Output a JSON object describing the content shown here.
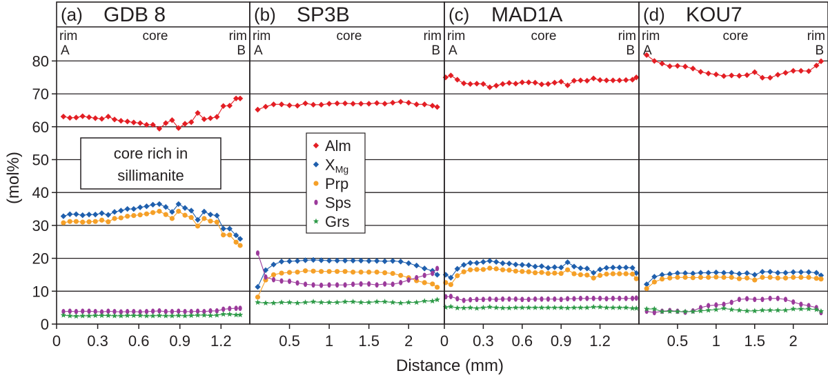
{
  "figure": {
    "ylabel": "(mol%)",
    "xlabel": "Distance (mm)",
    "ylim": [
      0,
      87
    ],
    "y_ticks": [
      0,
      10,
      20,
      30,
      40,
      50,
      60,
      70,
      80
    ],
    "y_tick_labels": [
      "0",
      "10",
      "20",
      "30",
      "40",
      "50",
      "60",
      "70",
      "80"
    ],
    "gridlines": [
      10,
      20,
      30,
      40,
      50,
      60,
      70,
      80
    ],
    "colors": {
      "Alm": "#e31e24",
      "XMg": "#1f5fad",
      "Prp": "#f5a028",
      "Sps": "#9b3a9b",
      "Grs": "#2e9a48",
      "axis": "#231f20"
    }
  },
  "legend": {
    "items": [
      {
        "key": "Alm",
        "label": "Alm",
        "marker": "diamond"
      },
      {
        "key": "XMg",
        "label": "X",
        "sub": "Mg",
        "marker": "diamond"
      },
      {
        "key": "Prp",
        "label": "Prp",
        "marker": "circle"
      },
      {
        "key": "Sps",
        "label": "Sps",
        "marker": "ellipse"
      },
      {
        "key": "Grs",
        "label": "Grs",
        "marker": "star"
      }
    ]
  },
  "annotation": {
    "line1": "core rich in",
    "line2": "sillimanite"
  },
  "chart_data": [
    {
      "type": "line",
      "title": "GDB 8",
      "tag": "(a)",
      "rim_left": "rim",
      "core": "core",
      "rim_right": "rim",
      "end_a": "A",
      "end_b": "B",
      "xlim": [
        0,
        1.41
      ],
      "x_ticks": [
        0,
        0.3,
        0.6,
        0.9,
        1.2
      ],
      "x_tick_labels": [
        "0",
        "0.3",
        "0.6",
        "0.9",
        "1.2"
      ],
      "x": [
        0.05,
        0.097,
        0.143,
        0.19,
        0.237,
        0.283,
        0.33,
        0.377,
        0.423,
        0.47,
        0.517,
        0.563,
        0.61,
        0.657,
        0.703,
        0.75,
        0.797,
        0.843,
        0.89,
        0.937,
        0.983,
        1.03,
        1.077,
        1.123,
        1.17,
        1.217,
        1.263,
        1.31,
        1.34
      ],
      "series": [
        {
          "name": "Alm",
          "values": [
            63.1,
            62.7,
            62.8,
            63.2,
            62.9,
            62.6,
            62.4,
            63.1,
            62.2,
            61.8,
            61.6,
            61.3,
            61.1,
            60.6,
            60.6,
            59.4,
            61.1,
            62.0,
            59.6,
            60.9,
            61.4,
            64.2,
            62.3,
            62.6,
            63.0,
            66.3,
            66.4,
            68.6,
            68.6
          ]
        },
        {
          "name": "XMg",
          "values": [
            32.8,
            33.4,
            33.4,
            33.1,
            33.3,
            33.3,
            33.7,
            33.2,
            34.1,
            34.5,
            35.0,
            35.0,
            35.5,
            35.8,
            36.3,
            36.5,
            35.6,
            34.1,
            36.5,
            35.3,
            34.5,
            31.7,
            34.2,
            33.3,
            33.0,
            29.0,
            29.0,
            27.0,
            25.9
          ]
        },
        {
          "name": "Prp",
          "values": [
            30.8,
            31.2,
            31.2,
            31.0,
            31.1,
            31.2,
            31.6,
            31.1,
            32.1,
            32.3,
            32.8,
            33.0,
            33.2,
            33.5,
            33.9,
            34.3,
            33.3,
            32.1,
            34.3,
            33.1,
            32.4,
            29.8,
            32.1,
            31.3,
            31.0,
            27.1,
            27.1,
            24.9,
            23.9
          ]
        },
        {
          "name": "Sps",
          "values": [
            3.8,
            3.9,
            3.8,
            3.9,
            3.9,
            3.8,
            3.7,
            3.9,
            3.8,
            3.7,
            3.8,
            3.8,
            3.7,
            3.8,
            3.9,
            4.0,
            3.8,
            3.8,
            3.9,
            3.8,
            3.8,
            3.9,
            3.8,
            4.0,
            4.0,
            4.5,
            4.7,
            4.8,
            4.8
          ]
        },
        {
          "name": "Grs",
          "values": [
            2.7,
            2.5,
            2.4,
            2.5,
            2.5,
            2.6,
            2.6,
            2.6,
            2.5,
            2.5,
            2.6,
            2.6,
            2.6,
            2.5,
            2.5,
            2.6,
            2.5,
            2.5,
            2.6,
            2.5,
            2.6,
            2.7,
            2.7,
            2.6,
            2.7,
            3.0,
            3.0,
            2.8,
            2.8
          ]
        }
      ]
    },
    {
      "type": "line",
      "title": "SP3B",
      "tag": "(b)",
      "rim_left": "rim",
      "core": "core",
      "rim_right": "rim",
      "end_a": "A",
      "end_b": "B",
      "xlim": [
        0,
        2.45
      ],
      "x_ticks": [
        0.5,
        1,
        1.5,
        2
      ],
      "x_tick_labels": [
        "0.5",
        "1",
        "1.5",
        "2"
      ],
      "x": [
        0.1,
        0.2,
        0.3,
        0.4,
        0.5,
        0.6,
        0.7,
        0.8,
        0.9,
        1.0,
        1.1,
        1.2,
        1.3,
        1.4,
        1.5,
        1.6,
        1.7,
        1.8,
        1.9,
        2.0,
        2.1,
        2.2,
        2.3,
        2.36
      ],
      "series": [
        {
          "name": "Alm",
          "values": [
            65.2,
            66.1,
            66.8,
            66.8,
            66.5,
            66.4,
            67.1,
            66.7,
            66.7,
            67.0,
            67.1,
            67.1,
            67.0,
            67.0,
            67.0,
            67.2,
            67.0,
            67.3,
            67.6,
            67.3,
            66.8,
            66.8,
            66.4,
            66.0
          ]
        },
        {
          "name": "XMg",
          "values": [
            11.3,
            16.4,
            18.1,
            19.0,
            19.1,
            19.2,
            19.4,
            19.5,
            19.4,
            19.3,
            19.3,
            19.3,
            19.3,
            19.3,
            19.2,
            19.2,
            19.1,
            19.2,
            19.0,
            18.5,
            17.8,
            16.9,
            16.2,
            15.0
          ]
        },
        {
          "name": "Prp",
          "values": [
            8.2,
            13.4,
            15.0,
            15.5,
            15.7,
            15.8,
            16.2,
            16.1,
            16.0,
            16.0,
            16.0,
            16.0,
            15.8,
            15.8,
            15.8,
            15.8,
            15.6,
            15.4,
            14.8,
            14.1,
            13.2,
            12.6,
            12.2,
            11.2
          ]
        },
        {
          "name": "Sps",
          "values": [
            21.6,
            14.3,
            13.5,
            13.1,
            13.0,
            12.5,
            12.1,
            11.9,
            11.8,
            11.9,
            11.9,
            11.9,
            12.1,
            12.2,
            12.2,
            11.9,
            12.2,
            12.1,
            12.6,
            13.4,
            14.1,
            14.8,
            15.4,
            16.9
          ]
        },
        {
          "name": "Grs",
          "values": [
            6.6,
            6.4,
            6.4,
            6.6,
            6.6,
            6.4,
            6.6,
            6.8,
            6.6,
            6.6,
            6.6,
            6.8,
            6.8,
            6.6,
            6.6,
            6.8,
            6.8,
            6.6,
            6.4,
            6.6,
            6.6,
            7.0,
            7.0,
            7.4
          ]
        }
      ]
    },
    {
      "type": "line",
      "title": "MAD1A",
      "tag": "(c)",
      "rim_left": "rim",
      "core": "core",
      "rim_right": "rim",
      "end_a": "A",
      "end_b": "B",
      "xlim": [
        0,
        1.5
      ],
      "x_ticks": [
        0,
        0.3,
        0.6,
        0.9,
        1.2
      ],
      "x_tick_labels": [
        "0",
        "0.3",
        "0.6",
        "0.9",
        "1.2"
      ],
      "x": [
        0.01,
        0.05,
        0.1,
        0.15,
        0.2,
        0.25,
        0.3,
        0.35,
        0.4,
        0.45,
        0.5,
        0.55,
        0.6,
        0.65,
        0.7,
        0.75,
        0.8,
        0.85,
        0.9,
        0.95,
        1.0,
        1.05,
        1.1,
        1.15,
        1.2,
        1.25,
        1.3,
        1.35,
        1.4,
        1.45,
        1.48
      ],
      "series": [
        {
          "name": "Alm",
          "values": [
            75.0,
            75.6,
            74.3,
            73.2,
            73.0,
            73.1,
            73.0,
            72.0,
            72.5,
            73.0,
            73.3,
            73.1,
            73.5,
            73.5,
            73.4,
            72.9,
            73.0,
            73.4,
            73.7,
            72.6,
            74.0,
            74.1,
            74.0,
            74.7,
            74.2,
            74.1,
            74.1,
            74.1,
            74.2,
            74.3,
            75.0
          ]
        },
        {
          "name": "XMg",
          "values": [
            15.0,
            14.1,
            16.8,
            18.0,
            18.6,
            18.6,
            18.9,
            19.2,
            18.9,
            18.5,
            18.4,
            18.1,
            18.0,
            17.9,
            17.5,
            17.6,
            17.1,
            17.3,
            17.2,
            18.8,
            17.5,
            17.0,
            16.9,
            15.6,
            16.6,
            17.1,
            17.2,
            17.2,
            17.2,
            17.1,
            15.5
          ]
        },
        {
          "name": "Prp",
          "values": [
            12.6,
            12.0,
            14.7,
            15.9,
            16.5,
            16.6,
            16.6,
            17.0,
            16.8,
            16.5,
            16.4,
            16.1,
            16.0,
            15.9,
            15.6,
            15.7,
            15.4,
            15.5,
            15.4,
            16.5,
            15.3,
            15.0,
            14.9,
            14.0,
            14.8,
            15.2,
            15.3,
            15.3,
            15.3,
            15.2,
            13.8
          ]
        },
        {
          "name": "Sps",
          "values": [
            8.3,
            8.4,
            7.7,
            7.2,
            7.4,
            7.5,
            7.5,
            7.6,
            7.5,
            7.6,
            7.6,
            7.6,
            7.5,
            7.5,
            7.6,
            7.6,
            7.6,
            7.6,
            7.5,
            7.7,
            7.7,
            7.8,
            7.8,
            7.8,
            7.8,
            7.7,
            7.8,
            7.8,
            7.8,
            7.8,
            7.9
          ]
        },
        {
          "name": "Grs",
          "values": [
            5.1,
            5.3,
            4.9,
            4.9,
            5.0,
            4.8,
            5.0,
            5.2,
            5.0,
            4.9,
            4.9,
            5.0,
            5.0,
            5.0,
            5.0,
            5.0,
            5.0,
            5.0,
            5.0,
            4.9,
            5.0,
            5.0,
            5.0,
            5.2,
            5.2,
            5.0,
            5.0,
            5.0,
            5.0,
            4.8,
            4.8
          ]
        }
      ]
    },
    {
      "type": "line",
      "title": "KOU7",
      "tag": "(d)",
      "rim_left": "rim",
      "core": "core",
      "rim_right": "rim",
      "end_a": "A",
      "end_b": "B",
      "xlim": [
        0,
        2.45
      ],
      "x_ticks": [
        0.5,
        1,
        1.5,
        2
      ],
      "x_tick_labels": [
        "0.5",
        "1",
        "1.5",
        "2"
      ],
      "x": [
        0.1,
        0.2,
        0.3,
        0.4,
        0.5,
        0.6,
        0.7,
        0.8,
        0.9,
        1.0,
        1.1,
        1.2,
        1.3,
        1.4,
        1.5,
        1.6,
        1.7,
        1.8,
        1.9,
        2.0,
        2.1,
        2.2,
        2.3,
        2.36
      ],
      "series": [
        {
          "name": "Alm",
          "values": [
            81.8,
            80.0,
            79.2,
            78.4,
            78.5,
            78.3,
            77.7,
            76.7,
            76.2,
            75.9,
            75.4,
            75.6,
            75.5,
            75.7,
            76.6,
            74.9,
            74.9,
            75.8,
            76.4,
            77.0,
            77.0,
            76.9,
            78.6,
            79.9
          ]
        },
        {
          "name": "XMg",
          "values": [
            12.1,
            14.4,
            15.0,
            15.2,
            15.5,
            15.5,
            15.4,
            15.6,
            15.6,
            15.7,
            15.6,
            15.6,
            15.3,
            15.5,
            15.0,
            15.9,
            15.9,
            15.6,
            15.6,
            15.8,
            15.8,
            15.8,
            15.6,
            14.8
          ]
        },
        {
          "name": "Prp",
          "values": [
            10.8,
            12.8,
            13.7,
            14.0,
            14.2,
            14.2,
            14.1,
            14.2,
            14.2,
            14.3,
            14.2,
            14.2,
            13.8,
            14.0,
            13.4,
            14.2,
            14.2,
            14.0,
            14.0,
            14.2,
            14.2,
            14.2,
            13.9,
            13.7
          ]
        },
        {
          "name": "Sps",
          "values": [
            3.9,
            3.5,
            3.9,
            4.1,
            3.9,
            3.6,
            4.0,
            5.0,
            5.6,
            5.8,
            6.0,
            6.6,
            7.5,
            7.7,
            7.5,
            7.5,
            7.8,
            7.8,
            7.5,
            6.7,
            6.0,
            5.6,
            5.0,
            3.5
          ]
        },
        {
          "name": "Grs",
          "values": [
            4.6,
            4.6,
            3.8,
            3.9,
            3.8,
            3.8,
            3.8,
            4.0,
            4.2,
            4.4,
            4.8,
            4.4,
            4.2,
            4.0,
            4.0,
            4.2,
            4.2,
            4.2,
            4.2,
            4.6,
            4.6,
            4.6,
            4.4,
            3.9
          ]
        }
      ]
    }
  ]
}
